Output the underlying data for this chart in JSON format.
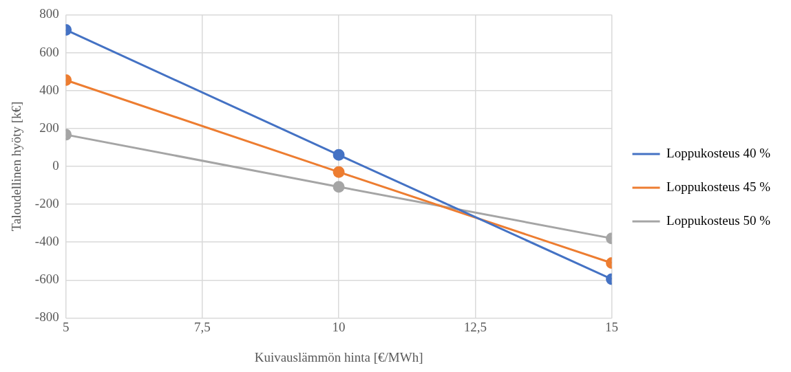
{
  "chart_data": {
    "type": "line",
    "xlabel": "Kuivauslämmön hinta [€/MWh]",
    "ylabel": "Taloudellinen hyöty [k€]",
    "xlim": [
      5,
      15
    ],
    "xticks": [
      5,
      {
        "value": 7.5,
        "label": "7,5"
      },
      10,
      {
        "value": 12.5,
        "label": "12,5"
      },
      15
    ],
    "ylim": [
      -800,
      800
    ],
    "yticks": [
      -800,
      -600,
      -400,
      -200,
      0,
      200,
      400,
      600,
      800
    ],
    "x": [
      5,
      10,
      15
    ],
    "series": [
      {
        "name": "Loppukosteus 40 %",
        "color": "#4472c4",
        "values": [
          720,
          60,
          -595
        ]
      },
      {
        "name": "Loppukosteus 45 %",
        "color": "#ed7d31",
        "values": [
          455,
          -30,
          -510
        ]
      },
      {
        "name": "Loppukosteus 50 %",
        "color": "#a5a5a5",
        "values": [
          167,
          -108,
          -380
        ]
      }
    ],
    "grid": true,
    "legend": "right",
    "marker": "circle",
    "line_style": "solid"
  }
}
